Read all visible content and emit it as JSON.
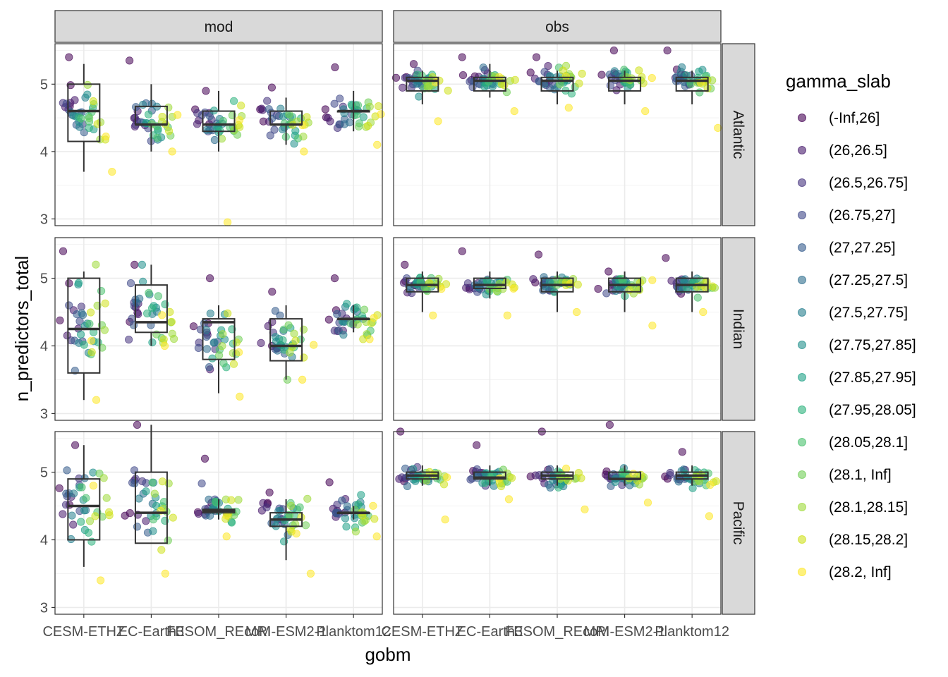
{
  "chart_data": {
    "type": "scatter",
    "subtype": "faceted jittered scatter with boxplots",
    "xlabel": "gobm",
    "ylabel": "n_predictors_total",
    "categories": [
      "CESM-ETHZ",
      "EC-Earth3",
      "FESOM_REcoM",
      "MRI-ESM2-1",
      "Planktom12"
    ],
    "ylim": [
      2.9,
      5.6
    ],
    "yticks": [
      3,
      4,
      5
    ],
    "grid": true,
    "legend_position": "right",
    "facet_cols": [
      "mod",
      "obs"
    ],
    "facet_rows": [
      "Atlantic",
      "Indian",
      "Pacific"
    ],
    "legend": {
      "title": "gamma_slab",
      "entries": [
        "(-Inf,26]",
        "(26,26.5]",
        "(26.5,26.75]",
        "(26.75,27]",
        "(27,27.25]",
        "(27.25,27.5]",
        "(27.5,27.75]",
        "(27.75,27.85]",
        "(27.85,27.95]",
        "(27.95,28.05]",
        "(28.05,28.1]",
        "(28.1, Inf]",
        "(28.1,28.15]",
        "(28.15,28.2]",
        "(28.2, Inf]"
      ],
      "colors": [
        "#440154",
        "#481B6D",
        "#46337E",
        "#3F4889",
        "#365C8D",
        "#2E6E8E",
        "#277F8E",
        "#21908C",
        "#1FA187",
        "#2DB27D",
        "#4AC16D",
        "#71CF57",
        "#9FDA3A",
        "#CFE11C",
        "#FDE725"
      ]
    },
    "boxes": {
      "mod": {
        "Atlantic": [
          [
            3.7,
            4.15,
            4.6,
            5.0,
            5.3
          ],
          [
            4.0,
            4.4,
            4.4,
            4.67,
            5.0
          ],
          [
            4.0,
            4.3,
            4.4,
            4.6,
            4.9
          ],
          [
            4.1,
            4.4,
            4.4,
            4.6,
            4.8
          ],
          [
            4.3,
            4.6,
            4.6,
            4.6,
            4.9
          ]
        ],
        "Indian": [
          [
            3.2,
            3.6,
            4.25,
            5.0,
            5.1
          ],
          [
            4.0,
            4.2,
            4.35,
            4.9,
            5.2
          ],
          [
            3.3,
            3.8,
            4.35,
            4.4,
            4.6
          ],
          [
            3.5,
            3.78,
            4.0,
            4.4,
            4.6
          ],
          [
            4.2,
            4.4,
            4.4,
            4.4,
            4.6
          ]
        ],
        "Pacific": [
          [
            3.6,
            4.0,
            4.5,
            4.9,
            5.4
          ],
          [
            3.95,
            3.95,
            4.4,
            5.0,
            5.7
          ],
          [
            4.3,
            4.4,
            4.43,
            4.45,
            4.6
          ],
          [
            3.7,
            4.2,
            4.3,
            4.4,
            4.6
          ],
          [
            4.3,
            4.4,
            4.4,
            4.4,
            4.5
          ]
        ]
      },
      "obs": {
        "Atlantic": [
          [
            4.7,
            4.9,
            5.05,
            5.1,
            5.2
          ],
          [
            4.8,
            4.9,
            5.05,
            5.1,
            5.3
          ],
          [
            4.7,
            4.9,
            5.05,
            5.1,
            5.2
          ],
          [
            4.7,
            4.9,
            5.05,
            5.1,
            5.2
          ],
          [
            4.7,
            4.9,
            5.05,
            5.1,
            5.2
          ]
        ],
        "Indian": [
          [
            4.5,
            4.8,
            4.9,
            5.0,
            5.1
          ],
          [
            4.7,
            4.85,
            4.9,
            5.0,
            5.1
          ],
          [
            4.5,
            4.8,
            4.9,
            5.0,
            5.1
          ],
          [
            4.5,
            4.8,
            4.9,
            5.0,
            5.1
          ],
          [
            4.5,
            4.8,
            4.9,
            5.0,
            5.1
          ]
        ],
        "Pacific": [
          [
            4.8,
            4.9,
            4.95,
            5.0,
            5.1
          ],
          [
            4.8,
            4.9,
            4.92,
            5.0,
            5.1
          ],
          [
            4.8,
            4.9,
            4.95,
            5.0,
            5.1
          ],
          [
            4.8,
            4.9,
            4.9,
            5.0,
            5.1
          ],
          [
            4.8,
            4.9,
            4.95,
            5.0,
            5.1
          ]
        ]
      }
    },
    "points": {
      "mod": {
        "Atlantic": [
          {
            "center": 4.6,
            "spread": 0.4,
            "min": 3.7,
            "max": 5.4
          },
          {
            "center": 4.45,
            "spread": 0.3,
            "min": 4.0,
            "max": 5.35
          },
          {
            "center": 4.4,
            "spread": 0.25,
            "min": 2.95,
            "max": 4.9
          },
          {
            "center": 4.45,
            "spread": 0.25,
            "min": 4.0,
            "max": 4.95
          },
          {
            "center": 4.55,
            "spread": 0.25,
            "min": 4.1,
            "max": 5.25
          }
        ],
        "Indian": [
          {
            "center": 4.3,
            "spread": 0.6,
            "min": 3.2,
            "max": 5.4
          },
          {
            "center": 4.5,
            "spread": 0.4,
            "min": 4.0,
            "max": 5.2
          },
          {
            "center": 4.1,
            "spread": 0.4,
            "min": 3.25,
            "max": 5.0
          },
          {
            "center": 4.1,
            "spread": 0.35,
            "min": 3.5,
            "max": 4.8
          },
          {
            "center": 4.4,
            "spread": 0.2,
            "min": 4.1,
            "max": 5.0
          }
        ],
        "Pacific": [
          {
            "center": 4.5,
            "spread": 0.5,
            "min": 3.4,
            "max": 5.4
          },
          {
            "center": 4.5,
            "spread": 0.5,
            "min": 3.5,
            "max": 5.7
          },
          {
            "center": 4.45,
            "spread": 0.2,
            "min": 4.05,
            "max": 5.2
          },
          {
            "center": 4.3,
            "spread": 0.3,
            "min": 3.5,
            "max": 4.7
          },
          {
            "center": 4.4,
            "spread": 0.2,
            "min": 4.05,
            "max": 4.85
          }
        ]
      },
      "obs": {
        "Atlantic": [
          {
            "center": 5.05,
            "spread": 0.15,
            "min": 4.45,
            "max": 5.3
          },
          {
            "center": 5.05,
            "spread": 0.15,
            "min": 4.6,
            "max": 5.4
          },
          {
            "center": 5.05,
            "spread": 0.15,
            "min": 4.65,
            "max": 5.4
          },
          {
            "center": 5.05,
            "spread": 0.15,
            "min": 4.6,
            "max": 5.5
          },
          {
            "center": 5.05,
            "spread": 0.15,
            "min": 4.35,
            "max": 5.5
          }
        ],
        "Indian": [
          {
            "center": 4.9,
            "spread": 0.12,
            "min": 4.45,
            "max": 5.2
          },
          {
            "center": 4.9,
            "spread": 0.12,
            "min": 4.45,
            "max": 5.4
          },
          {
            "center": 4.9,
            "spread": 0.12,
            "min": 4.5,
            "max": 5.35
          },
          {
            "center": 4.9,
            "spread": 0.12,
            "min": 4.3,
            "max": 5.1
          },
          {
            "center": 4.9,
            "spread": 0.12,
            "min": 4.5,
            "max": 5.3
          }
        ],
        "Pacific": [
          {
            "center": 4.92,
            "spread": 0.12,
            "min": 4.3,
            "max": 5.6
          },
          {
            "center": 4.92,
            "spread": 0.12,
            "min": 4.6,
            "max": 5.4
          },
          {
            "center": 4.92,
            "spread": 0.12,
            "min": 4.45,
            "max": 5.6
          },
          {
            "center": 4.92,
            "spread": 0.12,
            "min": 4.55,
            "max": 5.7
          },
          {
            "center": 4.92,
            "spread": 0.12,
            "min": 4.35,
            "max": 5.3
          }
        ]
      }
    }
  }
}
